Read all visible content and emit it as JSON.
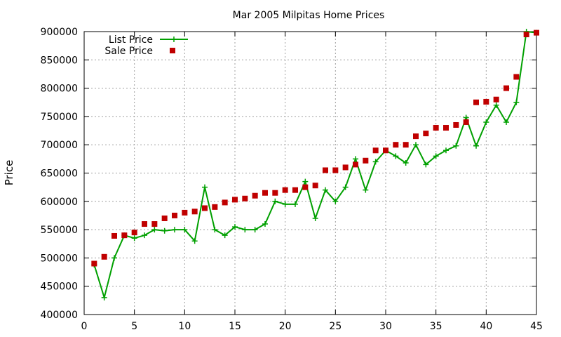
{
  "chart_data": {
    "type": "line",
    "title": "Mar 2005 Milpitas Home Prices",
    "xlabel": "",
    "ylabel": "Price",
    "xlim": [
      0,
      45
    ],
    "ylim": [
      400000,
      900000
    ],
    "xticks": [
      0,
      5,
      10,
      15,
      20,
      25,
      30,
      35,
      40,
      45
    ],
    "yticks": [
      400000,
      450000,
      500000,
      550000,
      600000,
      650000,
      700000,
      750000,
      800000,
      850000,
      900000
    ],
    "grid": true,
    "legend_position": "top-left",
    "series": [
      {
        "name": "List Price",
        "style": "line-points",
        "color": "#00a000",
        "marker": "plus",
        "x": [
          1,
          2,
          3,
          4,
          5,
          6,
          7,
          8,
          9,
          10,
          11,
          12,
          13,
          14,
          15,
          16,
          17,
          18,
          19,
          20,
          21,
          22,
          23,
          24,
          25,
          26,
          27,
          28,
          29,
          30,
          31,
          32,
          33,
          34,
          35,
          36,
          37,
          38,
          39,
          40,
          41,
          42,
          43,
          44,
          45
        ],
        "values": [
          488000,
          430000,
          500000,
          540000,
          535000,
          540000,
          550000,
          548000,
          550000,
          550000,
          530000,
          625000,
          550000,
          540000,
          555000,
          550000,
          550000,
          560000,
          600000,
          595000,
          595000,
          635000,
          570000,
          620000,
          600000,
          625000,
          675000,
          620000,
          670000,
          690000,
          680000,
          668000,
          700000,
          665000,
          680000,
          690000,
          698000,
          748000,
          698000,
          740000,
          770000,
          740000,
          775000,
          900000,
          898000
        ]
      },
      {
        "name": "Sale Price",
        "style": "points",
        "color": "#c00000",
        "marker": "square",
        "x": [
          1,
          2,
          3,
          4,
          5,
          6,
          7,
          8,
          9,
          10,
          11,
          12,
          13,
          14,
          15,
          16,
          17,
          18,
          19,
          20,
          21,
          22,
          23,
          24,
          25,
          26,
          27,
          28,
          29,
          30,
          31,
          32,
          33,
          34,
          35,
          36,
          37,
          38,
          39,
          40,
          41,
          42,
          43,
          44,
          45
        ],
        "values": [
          490000,
          502000,
          539000,
          540000,
          545000,
          560000,
          560000,
          570000,
          575000,
          580000,
          582000,
          588000,
          590000,
          598000,
          603000,
          605000,
          610000,
          615000,
          615000,
          620000,
          620000,
          625000,
          628000,
          655000,
          655000,
          660000,
          665000,
          672000,
          690000,
          690000,
          700000,
          700000,
          715000,
          720000,
          730000,
          730000,
          735000,
          740000,
          775000,
          776000,
          780000,
          800000,
          820000,
          895000,
          898000
        ]
      }
    ]
  }
}
